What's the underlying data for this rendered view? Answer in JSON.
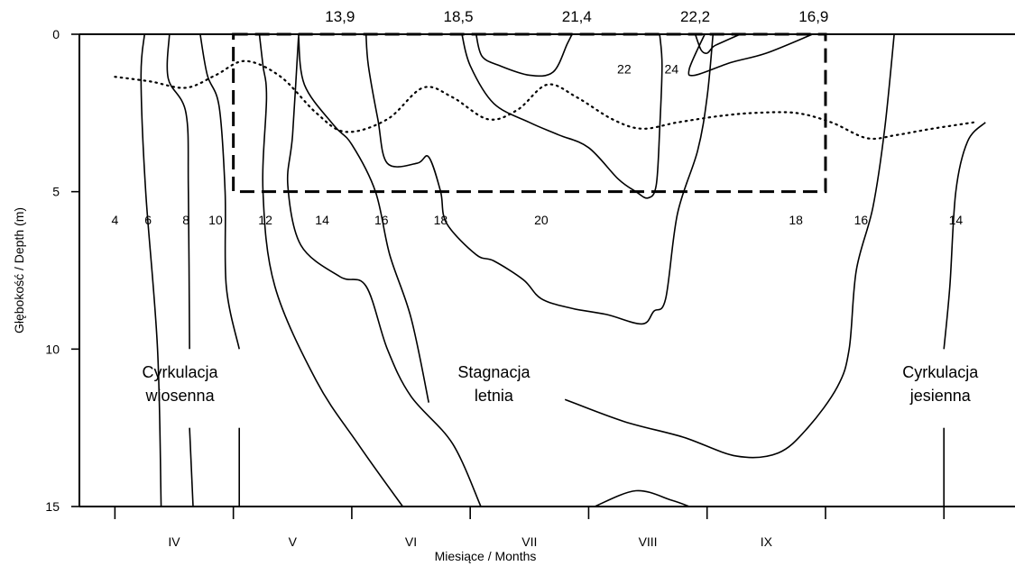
{
  "chart_data": {
    "type": "contour",
    "xlabel": "Miesiące / Months",
    "ylabel": "Głębokość / Depth (m)",
    "ylim": [
      0,
      15
    ],
    "yticks": [
      0,
      5,
      10,
      15
    ],
    "months": [
      "IV",
      "V",
      "VI",
      "VII",
      "VIII",
      "IX"
    ],
    "surface_values": [
      {
        "label": "13,9",
        "month": 4.9
      },
      {
        "label": "18,5",
        "month": 5.9
      },
      {
        "label": "21,4",
        "month": 6.9
      },
      {
        "label": "22,2",
        "month": 7.9
      },
      {
        "label": "16,9",
        "month": 8.9
      }
    ],
    "isotherm_labels": [
      {
        "label": "4",
        "month": 3.0,
        "depth": 5.9
      },
      {
        "label": "6",
        "month": 3.28,
        "depth": 5.9
      },
      {
        "label": "8",
        "month": 3.6,
        "depth": 5.9
      },
      {
        "label": "10",
        "month": 3.85,
        "depth": 5.9
      },
      {
        "label": "12",
        "month": 4.27,
        "depth": 5.9
      },
      {
        "label": "14",
        "month": 4.75,
        "depth": 5.9
      },
      {
        "label": "16",
        "month": 5.25,
        "depth": 5.9
      },
      {
        "label": "18",
        "month": 5.75,
        "depth": 5.9
      },
      {
        "label": "20",
        "month": 6.6,
        "depth": 5.9
      },
      {
        "label": "22",
        "month": 7.3,
        "depth": 1.1
      },
      {
        "label": "24",
        "month": 7.7,
        "depth": 1.1
      },
      {
        "label": "18",
        "month": 8.75,
        "depth": 5.9
      },
      {
        "label": "16",
        "month": 9.3,
        "depth": 5.9
      },
      {
        "label": "14",
        "month": 10.1,
        "depth": 5.9
      }
    ],
    "period_labels": [
      {
        "lines": [
          "Cyrkulacja",
          "wiosenna"
        ],
        "month": 3.55
      },
      {
        "lines": [
          "Stagnacja",
          "letnia"
        ],
        "month": 6.2
      },
      {
        "lines": [
          "Cyrkulacja",
          "jesienna"
        ],
        "month": 9.97
      }
    ],
    "isotherms": [
      {
        "t": 4,
        "pts": [
          [
            3.25,
            0
          ],
          [
            3.22,
            1.4
          ],
          [
            3.26,
            5
          ],
          [
            3.36,
            10
          ],
          [
            3.39,
            15
          ]
        ]
      },
      {
        "t": 6,
        "pts": [
          [
            3.46,
            0
          ],
          [
            3.45,
            1.4
          ],
          [
            3.6,
            2.5
          ],
          [
            3.62,
            5
          ],
          [
            3.63,
            10
          ]
        ]
      },
      {
        "t": 6,
        "pts": [
          [
            3.63,
            12.5
          ],
          [
            3.66,
            15
          ]
        ]
      },
      {
        "t": 8,
        "pts": [
          [
            3.72,
            0
          ],
          [
            3.78,
            1.3
          ],
          [
            3.88,
            2.3
          ],
          [
            3.93,
            5
          ],
          [
            3.94,
            8
          ],
          [
            4.05,
            10
          ]
        ]
      },
      {
        "t": 8,
        "pts": [
          [
            4.05,
            12.5
          ],
          [
            4.05,
            15
          ]
        ]
      },
      {
        "t": 10,
        "pts": [
          [
            4.22,
            0
          ],
          [
            4.25,
            1
          ],
          [
            4.28,
            2
          ],
          [
            4.25,
            5
          ],
          [
            4.35,
            8
          ],
          [
            4.7,
            11
          ],
          [
            5.05,
            13
          ],
          [
            5.43,
            15
          ]
        ]
      },
      {
        "t": 12,
        "pts": [
          [
            4.55,
            0
          ],
          [
            4.6,
            1.6
          ],
          [
            4.85,
            2.9
          ],
          [
            5.0,
            3.5
          ],
          [
            5.2,
            5
          ],
          [
            5.32,
            7
          ],
          [
            5.5,
            9
          ],
          [
            5.65,
            11.7
          ]
        ]
      },
      {
        "t": 14,
        "pts": [
          [
            4.55,
            0.1
          ],
          [
            4.5,
            3.2
          ],
          [
            4.46,
            4.8
          ],
          [
            4.57,
            6.7
          ],
          [
            4.9,
            7.7
          ],
          [
            5.12,
            8
          ],
          [
            5.3,
            10
          ],
          [
            5.5,
            11.5
          ],
          [
            5.85,
            13
          ],
          [
            6.09,
            15
          ]
        ]
      },
      {
        "t": 16,
        "pts": [
          [
            5.12,
            0
          ],
          [
            5.14,
            1
          ],
          [
            5.22,
            2.7
          ],
          [
            5.3,
            4.1
          ],
          [
            5.55,
            4.1
          ],
          [
            5.65,
            3.9
          ],
          [
            5.75,
            5
          ],
          [
            5.8,
            6
          ],
          [
            6.05,
            7
          ],
          [
            6.2,
            7.2
          ],
          [
            6.45,
            7.8
          ],
          [
            6.6,
            8.4
          ],
          [
            6.85,
            8.7
          ],
          [
            7.15,
            8.9
          ],
          [
            7.45,
            9.2
          ],
          [
            7.55,
            8.8
          ],
          [
            7.65,
            8.4
          ],
          [
            7.75,
            5.7
          ],
          [
            7.92,
            3.7
          ],
          [
            8.0,
            2
          ],
          [
            8.05,
            0
          ]
        ]
      },
      {
        "t": 18,
        "pts": [
          [
            5.93,
            0
          ],
          [
            6.0,
            1
          ],
          [
            6.2,
            2.2
          ],
          [
            6.5,
            2.8
          ],
          [
            6.75,
            3.2
          ],
          [
            7.0,
            3.6
          ],
          [
            7.25,
            4.6
          ],
          [
            7.4,
            5
          ],
          [
            7.5,
            5.2
          ],
          [
            7.57,
            4.8
          ],
          [
            7.6,
            3
          ],
          [
            7.62,
            1
          ],
          [
            7.6,
            0
          ]
        ]
      },
      {
        "t": 20,
        "pts": [
          [
            6.86,
            0
          ],
          [
            6.82,
            0.3
          ],
          [
            6.7,
            1.2
          ],
          [
            6.5,
            1.3
          ],
          [
            6.25,
            1.0
          ],
          [
            6.1,
            0.7
          ],
          [
            6.05,
            0
          ]
        ]
      },
      {
        "t": 22,
        "pts": [
          [
            7.98,
            0
          ],
          [
            7.85,
            1.1
          ],
          [
            7.9,
            1.3
          ],
          [
            8.2,
            0.9
          ],
          [
            8.5,
            0.6
          ],
          [
            8.89,
            0
          ]
        ]
      },
      {
        "t": 24,
        "pts": [
          [
            8.28,
            0
          ],
          [
            8.1,
            0.3
          ],
          [
            8.05,
            0.4
          ],
          [
            8.0,
            0.6
          ],
          [
            7.95,
            0.5
          ],
          [
            7.9,
            0
          ]
        ]
      },
      {
        "t": 18,
        "pts": [
          [
            9.58,
            0
          ],
          [
            9.5,
            3
          ],
          [
            9.4,
            5.5
          ],
          [
            9.26,
            7.5
          ],
          [
            9.2,
            10
          ],
          [
            9.1,
            11.2
          ],
          [
            8.85,
            12.5
          ],
          [
            8.6,
            13.3
          ],
          [
            8.25,
            13.4
          ],
          [
            7.8,
            12.8
          ],
          [
            7.3,
            12.3
          ],
          [
            6.8,
            11.6
          ]
        ]
      },
      {
        "t": 16,
        "pts": [
          [
            7.05,
            15
          ],
          [
            7.4,
            14.5
          ],
          [
            7.7,
            14.8
          ],
          [
            7.85,
            15
          ]
        ]
      },
      {
        "t": 14,
        "pts": [
          [
            10.35,
            2.8
          ],
          [
            10.2,
            3.4
          ],
          [
            10.1,
            5
          ],
          [
            10.05,
            8
          ],
          [
            10.0,
            10
          ]
        ]
      },
      {
        "t": 14,
        "pts": [
          [
            10.0,
            12.5
          ],
          [
            10.0,
            15
          ]
        ]
      }
    ],
    "thermocline_line": [
      [
        3.0,
        1.35
      ],
      [
        3.3,
        1.5
      ],
      [
        3.6,
        1.7
      ],
      [
        3.85,
        1.3
      ],
      [
        4.1,
        0.85
      ],
      [
        4.4,
        1.35
      ],
      [
        4.7,
        2.5
      ],
      [
        4.95,
        3.1
      ],
      [
        5.3,
        2.7
      ],
      [
        5.6,
        1.7
      ],
      [
        5.85,
        2.0
      ],
      [
        6.15,
        2.7
      ],
      [
        6.4,
        2.4
      ],
      [
        6.65,
        1.6
      ],
      [
        6.9,
        2.0
      ],
      [
        7.2,
        2.7
      ],
      [
        7.45,
        3.0
      ],
      [
        7.75,
        2.8
      ],
      [
        8.1,
        2.6
      ],
      [
        8.4,
        2.5
      ],
      [
        8.75,
        2.5
      ],
      [
        9.05,
        2.8
      ],
      [
        9.35,
        3.3
      ],
      [
        9.6,
        3.2
      ],
      [
        9.9,
        3.0
      ],
      [
        10.25,
        2.8
      ]
    ]
  }
}
